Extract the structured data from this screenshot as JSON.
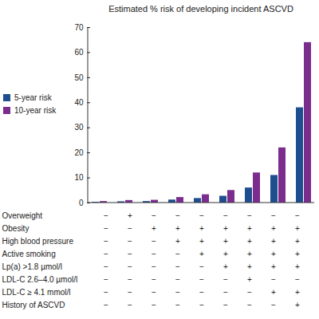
{
  "chart_data": {
    "type": "bar",
    "title": "Estimated % risk of developing incident ASCVD",
    "categories": [
      null,
      null,
      null,
      null,
      null,
      null,
      null,
      null,
      null
    ],
    "series": [
      {
        "name": "5-year risk",
        "color": "#1f4e8f",
        "values": [
          0.3,
          0.5,
          0.6,
          1.2,
          1.8,
          2.7,
          6.0,
          11.0,
          38.0
        ]
      },
      {
        "name": "10-year risk",
        "color": "#7b2d8e",
        "values": [
          0.6,
          1.0,
          1.1,
          2.2,
          3.3,
          5.0,
          12.0,
          22.0,
          64.0
        ]
      }
    ],
    "ylim": [
      0,
      70
    ],
    "yticks": [
      0,
      10,
      20,
      30,
      40,
      50,
      60,
      70
    ],
    "grid": false,
    "legend": "left"
  },
  "table": {
    "rows": [
      {
        "label": "Overweight",
        "cells": [
          "−",
          "+",
          "−",
          "−",
          "−",
          "−",
          "−",
          "−",
          "−"
        ]
      },
      {
        "label": "Obesity",
        "cells": [
          "−",
          "−",
          "+",
          "+",
          "+",
          "+",
          "+",
          "+",
          "+"
        ]
      },
      {
        "label": "High blood pressure",
        "cells": [
          "−",
          "−",
          "−",
          "+",
          "+",
          "+",
          "+",
          "+",
          "+"
        ]
      },
      {
        "label": "Active smoking",
        "cells": [
          "−",
          "−",
          "−",
          "−",
          "+",
          "+",
          "+",
          "+",
          "+"
        ]
      },
      {
        "label": "Lp(a) >1.8 µmol/l",
        "cells": [
          "−",
          "−",
          "−",
          "−",
          "−",
          "+",
          "+",
          "+",
          "+"
        ]
      },
      {
        "label": "LDL-C 2.6–4.0 µmol/l",
        "cells": [
          "−",
          "−",
          "−",
          "−",
          "−",
          "−",
          "+",
          "−",
          "−"
        ]
      },
      {
        "label": "LDL-C ≥ 4.1 mmol/l",
        "cells": [
          "−",
          "−",
          "−",
          "−",
          "−",
          "−",
          "−",
          "+",
          "+"
        ]
      },
      {
        "label": "History of ASCVD",
        "cells": [
          "−",
          "−",
          "−",
          "−",
          "−",
          "−",
          "−",
          "−",
          "+"
        ]
      }
    ]
  }
}
